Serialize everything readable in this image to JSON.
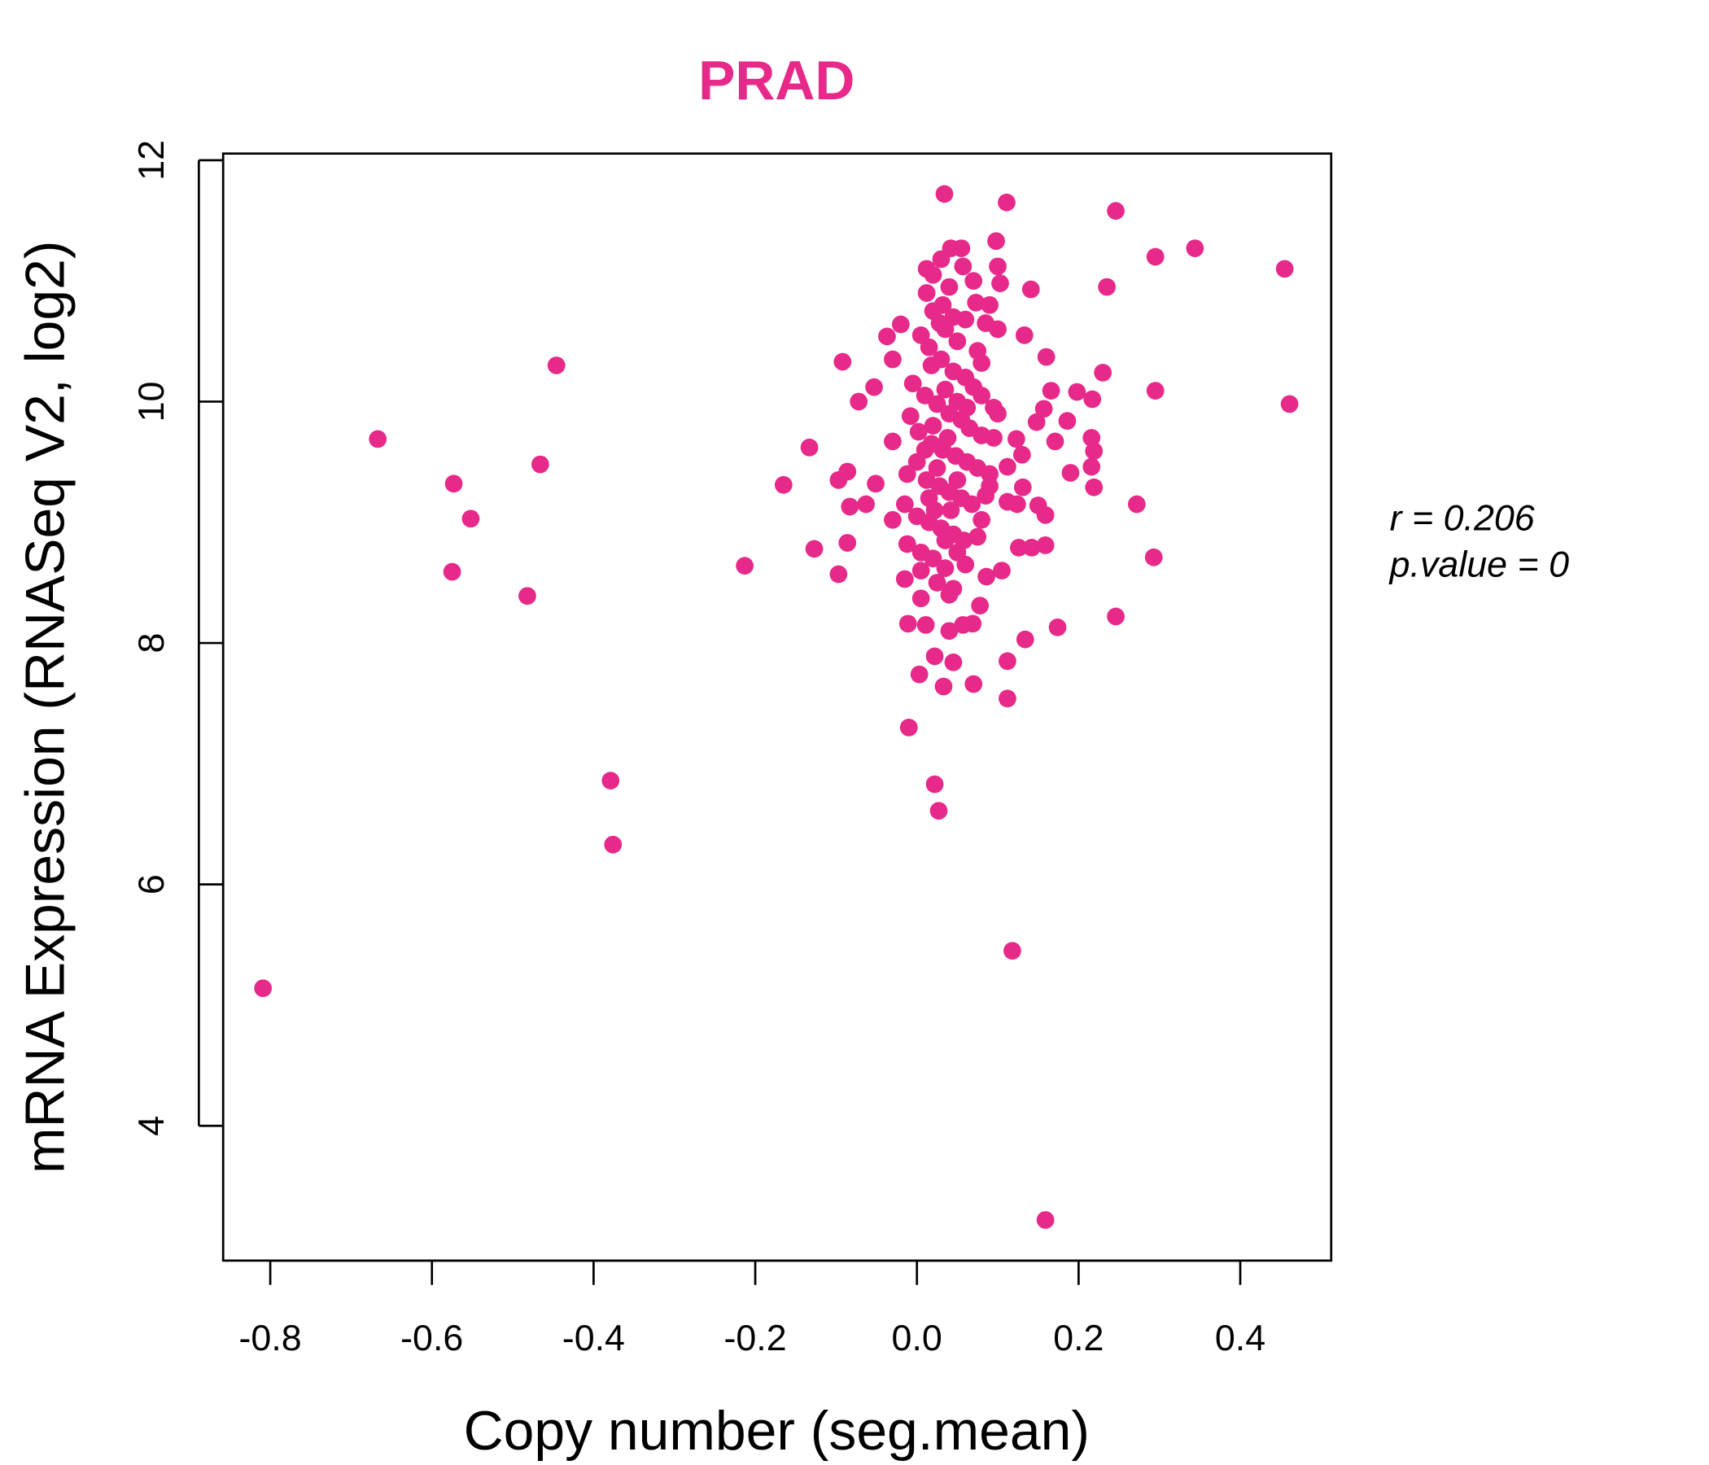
{
  "chart_data": {
    "type": "scatter",
    "title": "PRAD",
    "xlabel": "Copy number (seg.mean)",
    "ylabel": "mRNA Expression (RNASeq V2, log2)",
    "xlim": [
      -0.86,
      0.51
    ],
    "ylim": [
      2.9,
      12.05
    ],
    "xticks": [
      "-0.8",
      "-0.6",
      "-0.4",
      "-0.2",
      "0.0",
      "0.2",
      "0.4"
    ],
    "yticks": [
      "4",
      "6",
      "8",
      "10",
      "12"
    ],
    "grid": false,
    "stats": {
      "r_label": "r = 0.206",
      "p_label": "p.value = 0"
    },
    "colors": {
      "points": "#E7298A",
      "title": "#E7298A"
    },
    "points": [
      [
        -0.809,
        5.14
      ],
      [
        -0.667,
        9.69
      ],
      [
        -0.573,
        9.32
      ],
      [
        -0.552,
        9.03
      ],
      [
        -0.575,
        8.59
      ],
      [
        -0.482,
        8.39
      ],
      [
        -0.466,
        9.48
      ],
      [
        -0.446,
        10.3
      ],
      [
        -0.379,
        6.86
      ],
      [
        -0.376,
        6.33
      ],
      [
        -0.213,
        8.64
      ],
      [
        -0.165,
        9.31
      ],
      [
        -0.133,
        9.62
      ],
      [
        -0.127,
        8.78
      ],
      [
        -0.092,
        10.33
      ],
      [
        -0.097,
        9.35
      ],
      [
        -0.086,
        9.42
      ],
      [
        -0.083,
        9.13
      ],
      [
        -0.086,
        8.83
      ],
      [
        -0.097,
        8.57
      ],
      [
        -0.072,
        10.0
      ],
      [
        -0.063,
        9.15
      ],
      [
        -0.051,
        9.32
      ],
      [
        -0.053,
        10.12
      ],
      [
        -0.037,
        10.54
      ],
      [
        -0.03,
        10.35
      ],
      [
        -0.03,
        9.67
      ],
      [
        -0.03,
        9.02
      ],
      [
        -0.02,
        10.64
      ],
      [
        -0.01,
        7.3
      ],
      [
        0.003,
        7.74
      ],
      [
        0.022,
        6.83
      ],
      [
        0.027,
        6.61
      ],
      [
        0.033,
        7.64
      ],
      [
        0.045,
        7.84
      ],
      [
        0.022,
        7.89
      ],
      [
        0.04,
        8.1
      ],
      [
        0.07,
        7.66
      ],
      [
        0.118,
        5.45
      ],
      [
        0.159,
        3.22
      ],
      [
        0.112,
        7.54
      ],
      [
        0.112,
        7.85
      ],
      [
        0.134,
        8.03
      ],
      [
        0.174,
        8.13
      ],
      [
        0.246,
        8.22
      ],
      [
        0.293,
        8.71
      ],
      [
        0.272,
        9.15
      ],
      [
        0.295,
        10.09
      ],
      [
        0.23,
        10.24
      ],
      [
        0.235,
        10.95
      ],
      [
        0.246,
        11.58
      ],
      [
        0.295,
        11.2
      ],
      [
        0.344,
        11.27
      ],
      [
        0.455,
        11.1
      ],
      [
        0.461,
        9.98
      ],
      [
        0.111,
        11.65
      ],
      [
        0.034,
        11.72
      ],
      [
        0.098,
        11.33
      ],
      [
        0.141,
        10.93
      ],
      [
        0.133,
        10.55
      ],
      [
        0.16,
        10.37
      ],
      [
        0.166,
        10.09
      ],
      [
        0.186,
        9.84
      ],
      [
        0.216,
        9.7
      ],
      [
        0.219,
        9.59
      ],
      [
        0.216,
        9.46
      ],
      [
        0.219,
        9.29
      ],
      [
        0.19,
        9.41
      ],
      [
        0.171,
        9.67
      ],
      [
        0.157,
        9.94
      ],
      [
        0.148,
        9.83
      ],
      [
        0.217,
        10.02
      ],
      [
        0.198,
        10.08
      ],
      [
        0.159,
        9.06
      ],
      [
        0.15,
        9.14
      ],
      [
        0.159,
        8.81
      ],
      [
        0.142,
        8.79
      ],
      [
        0.126,
        8.79
      ],
      [
        0.105,
        8.6
      ],
      [
        0.13,
        9.56
      ],
      [
        0.123,
        9.69
      ],
      [
        0.131,
        9.29
      ],
      [
        0.112,
        9.17
      ],
      [
        0.124,
        9.15
      ],
      [
        0.112,
        9.46
      ],
      [
        0.086,
        8.55
      ],
      [
        0.078,
        8.31
      ],
      [
        0.069,
        8.16
      ],
      [
        0.057,
        8.15
      ],
      [
        -0.011,
        8.16
      ],
      [
        0.011,
        8.15
      ],
      [
        0.005,
        8.37
      ],
      [
        -0.015,
        8.53
      ],
      [
        0.04,
        8.4
      ],
      [
        0.012,
        11.1
      ],
      [
        0.02,
        11.05
      ],
      [
        0.03,
        11.18
      ],
      [
        0.042,
        11.27
      ],
      [
        0.055,
        11.27
      ],
      [
        0.057,
        11.12
      ],
      [
        0.07,
        11.0
      ],
      [
        0.012,
        10.9
      ],
      [
        0.04,
        10.95
      ],
      [
        0.073,
        10.82
      ],
      [
        0.09,
        10.8
      ],
      [
        0.1,
        11.12
      ],
      [
        0.103,
        10.98
      ],
      [
        0.06,
        10.68
      ],
      [
        0.085,
        10.65
      ],
      [
        0.1,
        10.6
      ],
      [
        0.02,
        10.75
      ],
      [
        0.035,
        10.6
      ],
      [
        0.05,
        10.5
      ],
      [
        0.075,
        10.42
      ],
      [
        0.08,
        10.32
      ],
      [
        0.005,
        10.55
      ],
      [
        0.015,
        10.45
      ],
      [
        0.03,
        10.35
      ],
      [
        0.045,
        10.25
      ],
      [
        0.06,
        10.2
      ],
      [
        0.07,
        10.12
      ],
      [
        0.08,
        10.05
      ],
      [
        0.095,
        9.95
      ],
      [
        0.1,
        9.9
      ],
      [
        -0.005,
        10.15
      ],
      [
        0.01,
        10.05
      ],
      [
        0.025,
        9.98
      ],
      [
        0.04,
        9.9
      ],
      [
        0.055,
        9.85
      ],
      [
        0.065,
        9.78
      ],
      [
        0.08,
        9.72
      ],
      [
        0.095,
        9.7
      ],
      [
        -0.008,
        9.88
      ],
      [
        0.002,
        9.75
      ],
      [
        0.018,
        9.65
      ],
      [
        0.032,
        9.6
      ],
      [
        0.048,
        9.55
      ],
      [
        0.062,
        9.5
      ],
      [
        0.075,
        9.45
      ],
      [
        0.09,
        9.4
      ],
      [
        -0.012,
        9.4
      ],
      [
        0.0,
        9.5
      ],
      [
        0.012,
        9.35
      ],
      [
        0.028,
        9.3
      ],
      [
        0.04,
        9.25
      ],
      [
        0.055,
        9.2
      ],
      [
        0.068,
        9.15
      ],
      [
        0.085,
        9.22
      ],
      [
        0.09,
        9.3
      ],
      [
        -0.015,
        9.15
      ],
      [
        0.0,
        9.05
      ],
      [
        0.015,
        9.0
      ],
      [
        0.03,
        8.95
      ],
      [
        0.045,
        8.9
      ],
      [
        0.058,
        8.85
      ],
      [
        0.075,
        8.88
      ],
      [
        0.08,
        9.02
      ],
      [
        -0.012,
        8.82
      ],
      [
        0.005,
        8.75
      ],
      [
        0.02,
        8.7
      ],
      [
        0.035,
        8.62
      ],
      [
        0.05,
        8.75
      ],
      [
        0.06,
        8.65
      ],
      [
        0.005,
        8.6
      ],
      [
        0.025,
        8.5
      ],
      [
        0.045,
        8.45
      ],
      [
        0.02,
        9.8
      ],
      [
        0.035,
        10.1
      ],
      [
        0.05,
        10.0
      ],
      [
        0.025,
        9.45
      ],
      [
        0.038,
        9.7
      ],
      [
        0.05,
        9.35
      ],
      [
        0.015,
        9.2
      ],
      [
        0.042,
        9.1
      ],
      [
        0.028,
        10.65
      ],
      [
        0.045,
        10.7
      ],
      [
        0.018,
        10.3
      ],
      [
        0.032,
        10.8
      ],
      [
        0.062,
        9.95
      ],
      [
        0.01,
        9.6
      ],
      [
        0.022,
        9.1
      ],
      [
        0.035,
        8.85
      ]
    ]
  }
}
